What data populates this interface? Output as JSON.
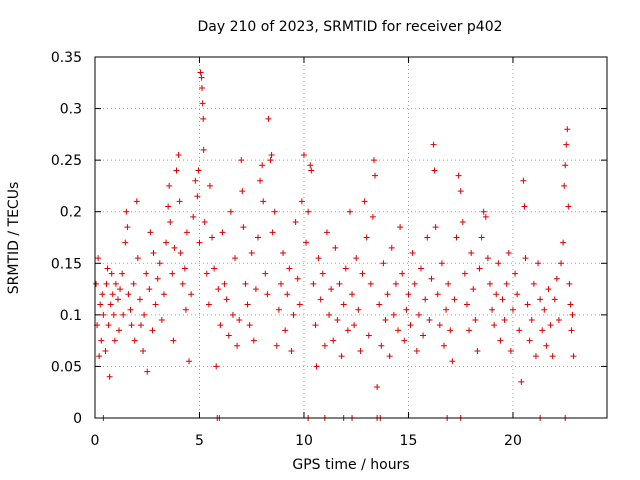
{
  "chart_data": {
    "type": "scatter",
    "title": "Day 210 of 2023, SRMTID for receiver p402",
    "xlabel": "GPS time / hours",
    "ylabel": "SRMTID / TECUs",
    "xlim": [
      0,
      24.5
    ],
    "ylim": [
      0,
      0.35
    ],
    "xticks": [
      0,
      5,
      10,
      15,
      20
    ],
    "yticks": [
      0,
      0.05,
      0.1,
      0.15,
      0.2,
      0.25,
      0.3,
      0.35
    ],
    "ytick_labels": [
      "0",
      "0.05",
      "0.1",
      "0.15",
      "0.2",
      "0.25",
      "0.3",
      "0.35"
    ],
    "grid": true,
    "marker": "+",
    "color": "#dd0000",
    "series": [
      {
        "name": "SRMTID",
        "points": [
          [
            0.05,
            0.13
          ],
          [
            0.1,
            0.09
          ],
          [
            0.15,
            0.155
          ],
          [
            0.2,
            0.06
          ],
          [
            0.25,
            0.11
          ],
          [
            0.3,
            0.075
          ],
          [
            0.35,
            0.12
          ],
          [
            0.4,
            0.1
          ],
          [
            0.5,
            0.065
          ],
          [
            0.55,
            0.13
          ],
          [
            0.6,
            0.145
          ],
          [
            0.65,
            0.09
          ],
          [
            0.7,
            0.04
          ],
          [
            0.75,
            0.11
          ],
          [
            0.8,
            0.14
          ],
          [
            0.85,
            0.12
          ],
          [
            0.9,
            0.1
          ],
          [
            0.95,
            0.075
          ],
          [
            1.0,
            0.13
          ],
          [
            1.1,
            0.115
          ],
          [
            1.15,
            0.085
          ],
          [
            1.2,
            0.125
          ],
          [
            1.3,
            0.14
          ],
          [
            1.35,
            0.1
          ],
          [
            1.45,
            0.17
          ],
          [
            1.5,
            0.2
          ],
          [
            1.55,
            0.185
          ],
          [
            1.6,
            0.12
          ],
          [
            1.7,
            0.105
          ],
          [
            1.75,
            0.09
          ],
          [
            1.85,
            0.13
          ],
          [
            1.9,
            0.075
          ],
          [
            2.0,
            0.21
          ],
          [
            2.05,
            0.155
          ],
          [
            2.15,
            0.115
          ],
          [
            2.2,
            0.09
          ],
          [
            2.3,
            0.065
          ],
          [
            2.35,
            0.1
          ],
          [
            2.45,
            0.14
          ],
          [
            2.5,
            0.045
          ],
          [
            2.6,
            0.125
          ],
          [
            2.65,
            0.18
          ],
          [
            2.75,
            0.085
          ],
          [
            2.8,
            0.16
          ],
          [
            2.9,
            0.11
          ],
          [
            3.0,
            0.135
          ],
          [
            3.1,
            0.15
          ],
          [
            3.2,
            0.095
          ],
          [
            3.3,
            0.12
          ],
          [
            3.4,
            0.17
          ],
          [
            3.5,
            0.205
          ],
          [
            3.55,
            0.225
          ],
          [
            3.6,
            0.19
          ],
          [
            3.7,
            0.14
          ],
          [
            3.75,
            0.075
          ],
          [
            3.8,
            0.165
          ],
          [
            3.9,
            0.24
          ],
          [
            4.0,
            0.255
          ],
          [
            4.05,
            0.21
          ],
          [
            4.1,
            0.16
          ],
          [
            4.2,
            0.13
          ],
          [
            4.3,
            0.145
          ],
          [
            4.35,
            0.105
          ],
          [
            4.4,
            0.18
          ],
          [
            4.5,
            0.055
          ],
          [
            4.6,
            0.12
          ],
          [
            4.7,
            0.195
          ],
          [
            4.8,
            0.23
          ],
          [
            4.9,
            0.215
          ],
          [
            4.95,
            0.24
          ],
          [
            5.0,
            0.17
          ],
          [
            5.05,
            0.335
          ],
          [
            5.1,
            0.33
          ],
          [
            5.12,
            0.32
          ],
          [
            5.15,
            0.305
          ],
          [
            5.18,
            0.29
          ],
          [
            5.2,
            0.26
          ],
          [
            5.25,
            0.19
          ],
          [
            5.35,
            0.14
          ],
          [
            5.45,
            0.11
          ],
          [
            5.5,
            0.225
          ],
          [
            5.6,
            0.175
          ],
          [
            5.7,
            0.145
          ],
          [
            5.8,
            0.05
          ],
          [
            5.9,
            0.125
          ],
          [
            6.0,
            0.09
          ],
          [
            6.1,
            0.18
          ],
          [
            6.2,
            0.13
          ],
          [
            6.3,
            0.115
          ],
          [
            6.4,
            0.08
          ],
          [
            6.5,
            0.2
          ],
          [
            6.6,
            0.1
          ],
          [
            6.7,
            0.155
          ],
          [
            6.8,
            0.07
          ],
          [
            6.9,
            0.095
          ],
          [
            7.0,
            0.25
          ],
          [
            7.05,
            0.22
          ],
          [
            7.1,
            0.185
          ],
          [
            7.2,
            0.13
          ],
          [
            7.3,
            0.11
          ],
          [
            7.4,
            0.09
          ],
          [
            7.5,
            0.16
          ],
          [
            7.6,
            0.075
          ],
          [
            7.7,
            0.125
          ],
          [
            7.8,
            0.175
          ],
          [
            7.9,
            0.23
          ],
          [
            8.0,
            0.245
          ],
          [
            8.05,
            0.21
          ],
          [
            8.15,
            0.14
          ],
          [
            8.25,
            0.12
          ],
          [
            8.3,
            0.29
          ],
          [
            8.4,
            0.25
          ],
          [
            8.45,
            0.255
          ],
          [
            8.5,
            0.18
          ],
          [
            8.6,
            0.2
          ],
          [
            8.7,
            0.07
          ],
          [
            8.8,
            0.105
          ],
          [
            8.9,
            0.13
          ],
          [
            9.0,
            0.16
          ],
          [
            9.1,
            0.085
          ],
          [
            9.2,
            0.12
          ],
          [
            9.3,
            0.145
          ],
          [
            9.4,
            0.065
          ],
          [
            9.5,
            0.1
          ],
          [
            9.6,
            0.19
          ],
          [
            9.7,
            0.135
          ],
          [
            9.8,
            0.11
          ],
          [
            9.9,
            0.21
          ],
          [
            10.0,
            0.255
          ],
          [
            10.1,
            0.17
          ],
          [
            10.2,
            0.2
          ],
          [
            10.3,
            0.245
          ],
          [
            10.35,
            0.24
          ],
          [
            10.45,
            0.13
          ],
          [
            10.55,
            0.09
          ],
          [
            10.6,
            0.05
          ],
          [
            10.7,
            0.155
          ],
          [
            10.8,
            0.115
          ],
          [
            10.9,
            0.14
          ],
          [
            11.0,
            0.07
          ],
          [
            11.1,
            0.18
          ],
          [
            11.2,
            0.1
          ],
          [
            11.3,
            0.125
          ],
          [
            11.4,
            0.075
          ],
          [
            11.5,
            0.165
          ],
          [
            11.6,
            0.095
          ],
          [
            11.7,
            0.13
          ],
          [
            11.8,
            0.06
          ],
          [
            11.9,
            0.11
          ],
          [
            12.0,
            0.145
          ],
          [
            12.1,
            0.085
          ],
          [
            12.2,
            0.2
          ],
          [
            12.3,
            0.12
          ],
          [
            12.4,
            0.09
          ],
          [
            12.5,
            0.155
          ],
          [
            12.6,
            0.105
          ],
          [
            12.7,
            0.065
          ],
          [
            12.8,
            0.14
          ],
          [
            12.9,
            0.21
          ],
          [
            13.0,
            0.175
          ],
          [
            13.1,
            0.08
          ],
          [
            13.2,
            0.13
          ],
          [
            13.3,
            0.195
          ],
          [
            13.35,
            0.25
          ],
          [
            13.4,
            0.235
          ],
          [
            13.5,
            0.03
          ],
          [
            13.6,
            0.11
          ],
          [
            13.7,
            0.07
          ],
          [
            13.8,
            0.15
          ],
          [
            13.9,
            0.095
          ],
          [
            14.0,
            0.12
          ],
          [
            14.1,
            0.06
          ],
          [
            14.2,
            0.165
          ],
          [
            14.3,
            0.1
          ],
          [
            14.4,
            0.13
          ],
          [
            14.5,
            0.085
          ],
          [
            14.6,
            0.185
          ],
          [
            14.7,
            0.14
          ],
          [
            14.8,
            0.075
          ],
          [
            14.9,
            0.105
          ],
          [
            15.0,
            0.12
          ],
          [
            15.1,
            0.09
          ],
          [
            15.2,
            0.16
          ],
          [
            15.3,
            0.13
          ],
          [
            15.4,
            0.065
          ],
          [
            15.5,
            0.1
          ],
          [
            15.6,
            0.145
          ],
          [
            15.7,
            0.08
          ],
          [
            15.8,
            0.115
          ],
          [
            15.9,
            0.175
          ],
          [
            16.0,
            0.095
          ],
          [
            16.1,
            0.135
          ],
          [
            16.2,
            0.265
          ],
          [
            16.25,
            0.24
          ],
          [
            16.3,
            0.185
          ],
          [
            16.4,
            0.12
          ],
          [
            16.5,
            0.09
          ],
          [
            16.6,
            0.15
          ],
          [
            16.7,
            0.07
          ],
          [
            16.8,
            0.105
          ],
          [
            16.9,
            0.13
          ],
          [
            17.0,
            0.085
          ],
          [
            17.1,
            0.055
          ],
          [
            17.2,
            0.115
          ],
          [
            17.3,
            0.175
          ],
          [
            17.4,
            0.235
          ],
          [
            17.5,
            0.22
          ],
          [
            17.6,
            0.19
          ],
          [
            17.7,
            0.14
          ],
          [
            17.8,
            0.11
          ],
          [
            17.9,
            0.085
          ],
          [
            18.0,
            0.16
          ],
          [
            18.1,
            0.125
          ],
          [
            18.2,
            0.095
          ],
          [
            18.3,
            0.065
          ],
          [
            18.4,
            0.145
          ],
          [
            18.5,
            0.175
          ],
          [
            18.6,
            0.2
          ],
          [
            18.7,
            0.195
          ],
          [
            18.8,
            0.155
          ],
          [
            18.9,
            0.13
          ],
          [
            19.0,
            0.105
          ],
          [
            19.1,
            0.09
          ],
          [
            19.2,
            0.12
          ],
          [
            19.3,
            0.15
          ],
          [
            19.4,
            0.075
          ],
          [
            19.5,
            0.115
          ],
          [
            19.6,
            0.095
          ],
          [
            19.7,
            0.13
          ],
          [
            19.8,
            0.16
          ],
          [
            19.9,
            0.065
          ],
          [
            20.0,
            0.105
          ],
          [
            20.1,
            0.14
          ],
          [
            20.2,
            0.12
          ],
          [
            20.3,
            0.085
          ],
          [
            20.4,
            0.035
          ],
          [
            20.5,
            0.23
          ],
          [
            20.55,
            0.205
          ],
          [
            20.6,
            0.155
          ],
          [
            20.7,
            0.11
          ],
          [
            20.8,
            0.075
          ],
          [
            20.9,
            0.095
          ],
          [
            21.0,
            0.13
          ],
          [
            21.1,
            0.06
          ],
          [
            21.2,
            0.15
          ],
          [
            21.3,
            0.115
          ],
          [
            21.4,
            0.085
          ],
          [
            21.5,
            0.105
          ],
          [
            21.6,
            0.07
          ],
          [
            21.7,
            0.125
          ],
          [
            21.8,
            0.09
          ],
          [
            21.9,
            0.06
          ],
          [
            22.0,
            0.115
          ],
          [
            22.1,
            0.135
          ],
          [
            22.2,
            0.095
          ],
          [
            22.3,
            0.15
          ],
          [
            22.4,
            0.17
          ],
          [
            22.45,
            0.225
          ],
          [
            22.5,
            0.245
          ],
          [
            22.55,
            0.265
          ],
          [
            22.6,
            0.28
          ],
          [
            22.65,
            0.205
          ],
          [
            22.7,
            0.13
          ],
          [
            22.75,
            0.11
          ],
          [
            22.8,
            0.085
          ],
          [
            22.85,
            0.1
          ],
          [
            22.9,
            0.06
          ]
        ]
      }
    ],
    "axis_marks_at_zero": [
      0.4,
      5.85,
      5.95,
      10.2,
      11.0,
      11.9,
      12.3,
      13.5,
      13.65,
      16.85,
      17.5,
      21.3,
      22.5
    ]
  }
}
